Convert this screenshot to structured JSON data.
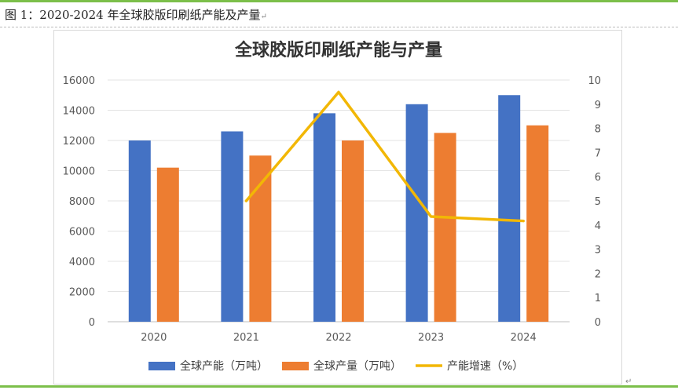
{
  "caption": "图 1：2020-2024 年全球胶版印刷纸产能及产量",
  "caption_mark": "↵",
  "end_mark": "↵",
  "colors": {
    "capacity": "#4472c4",
    "output": "#ed7d31",
    "growth": "#f2b705",
    "rule": "#7cbf4a"
  },
  "chart_data": {
    "type": "bar",
    "title": "全球胶版印刷纸产能与产量",
    "categories": [
      "2020",
      "2021",
      "2022",
      "2023",
      "2024"
    ],
    "series": [
      {
        "name": "全球产能（万吨）",
        "type": "bar",
        "axis": "left",
        "values": [
          12000,
          12600,
          13800,
          14400,
          15000
        ]
      },
      {
        "name": "全球产量（万吨）",
        "type": "bar",
        "axis": "left",
        "values": [
          10200,
          11000,
          12000,
          12500,
          13000
        ]
      },
      {
        "name": "产能增速（%）",
        "type": "line",
        "axis": "right",
        "values": [
          null,
          5.0,
          9.5,
          4.35,
          4.17
        ]
      }
    ],
    "y_left": {
      "min": 0,
      "max": 16000,
      "ticks": [
        0,
        2000,
        4000,
        6000,
        8000,
        10000,
        12000,
        14000,
        16000
      ]
    },
    "y_right": {
      "min": 0,
      "max": 10,
      "ticks": [
        0,
        1,
        2,
        3,
        4,
        5,
        6,
        7,
        8,
        9,
        10
      ]
    },
    "gridlines": true,
    "legend_position": "bottom"
  }
}
